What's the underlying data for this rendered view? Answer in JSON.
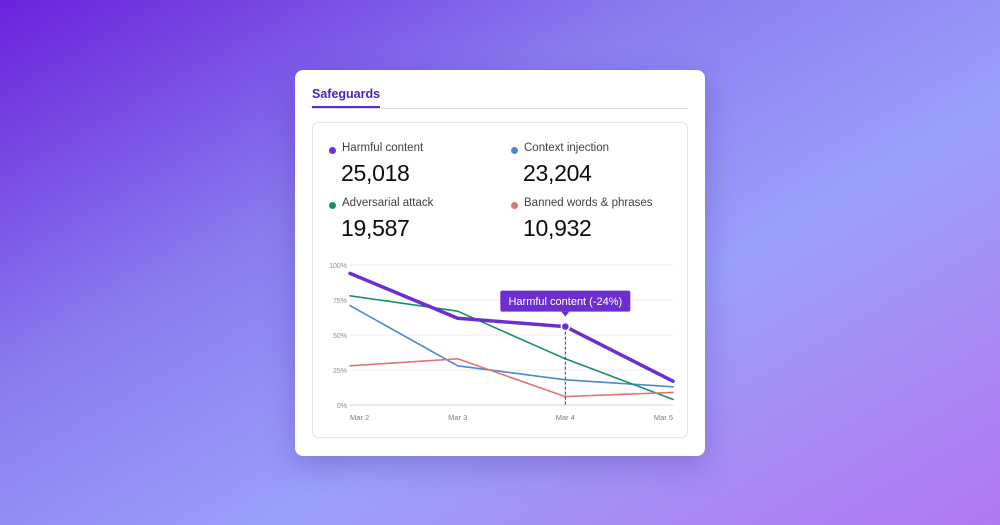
{
  "card": {
    "tabs": [
      {
        "label": "Safeguards",
        "active": true
      }
    ]
  },
  "metrics": [
    {
      "label": "Harmful content",
      "value": "25,018",
      "color": "#6d2ed0"
    },
    {
      "label": "Context injection",
      "value": "23,204",
      "color": "#4f86d2"
    },
    {
      "label": "Adversarial attack",
      "value": "19,587",
      "color": "#119068"
    },
    {
      "label": "Banned words & phrases",
      "value": "10,932",
      "color": "#e07470"
    }
  ],
  "chart_data": {
    "type": "line",
    "x": [
      "Mar 2",
      "Mar 3",
      "Mar 4",
      "Mar 5"
    ],
    "y_ticks": [
      "0%",
      "25%",
      "50%",
      "75%",
      "100%"
    ],
    "ylim": [
      0,
      100
    ],
    "grid": true,
    "series": [
      {
        "name": "Harmful content",
        "values": [
          94,
          62,
          56,
          17
        ],
        "color": "#6d2ed0",
        "emphasized": true
      },
      {
        "name": "Context injection",
        "values": [
          71,
          28,
          18,
          13
        ],
        "color": "#4f86d2"
      },
      {
        "name": "Adversarial attack",
        "values": [
          78,
          67,
          33,
          4
        ],
        "color": "#119068"
      },
      {
        "name": "Banned words & phrases",
        "values": [
          28,
          33,
          6,
          9
        ],
        "color": "#e07470"
      }
    ],
    "tooltip": {
      "text": "Harmful content (-24%)",
      "series": "Harmful content",
      "x": "Mar 4",
      "value": 56
    }
  }
}
